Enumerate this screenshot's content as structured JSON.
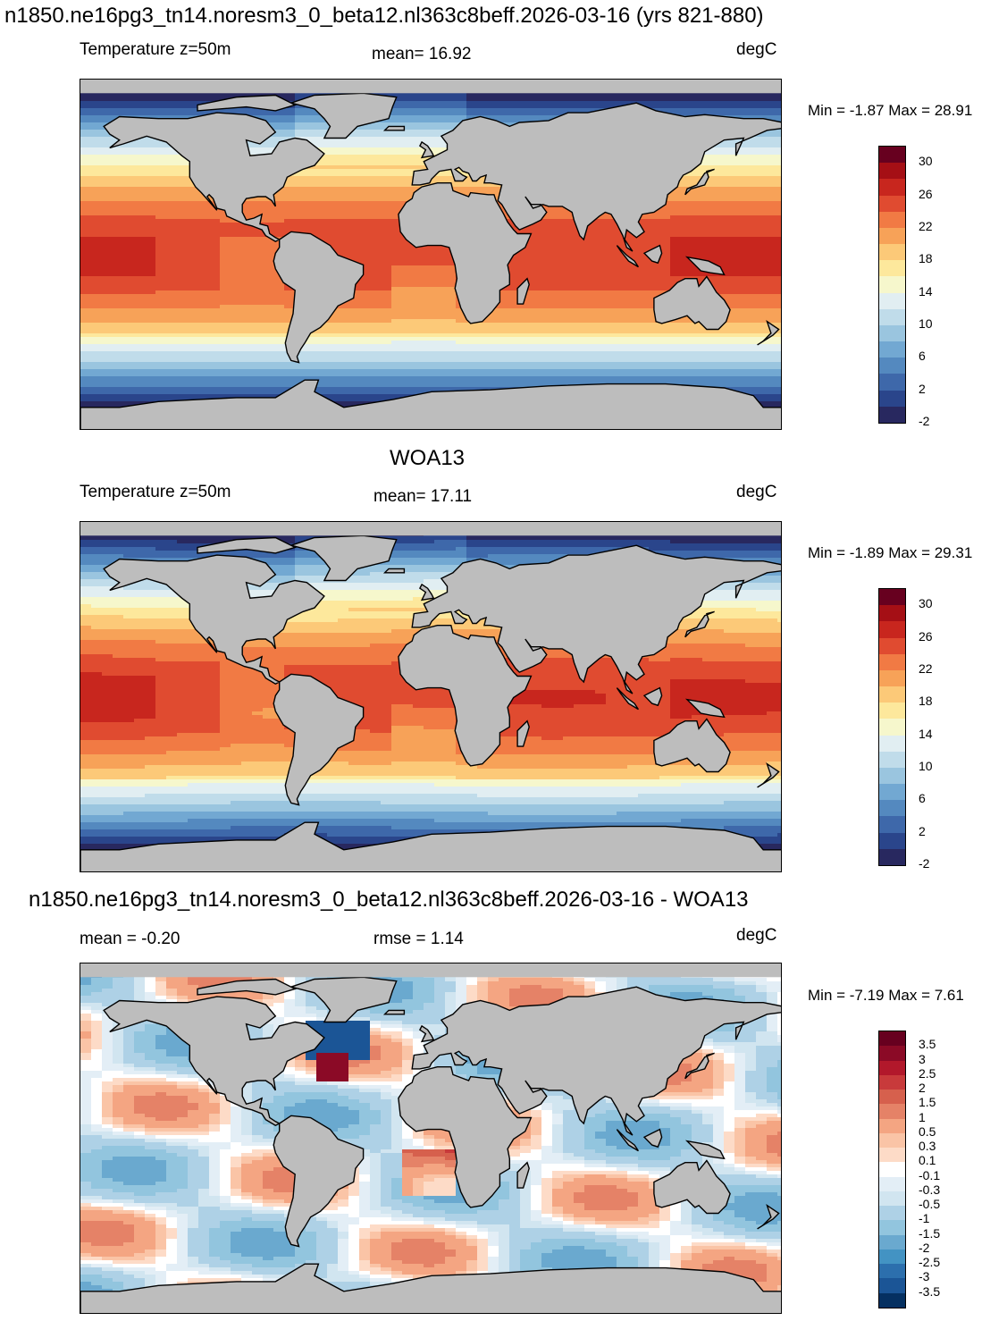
{
  "main_title": "n1850.ne16pg3_tn14.noresm3_0_beta12.nl363c8beff.2026-03-16 (yrs 821-880)",
  "panels": [
    {
      "id": "model",
      "heading": "",
      "left_label": "Temperature z=50m",
      "center_label": "mean=  16.92",
      "right_label": "degC",
      "minmax": "Min =  -1.87 Max =  28.91",
      "colorbar_labels": [
        "30",
        "26",
        "22",
        "18",
        "14",
        "10",
        "6",
        "2",
        "-2"
      ]
    },
    {
      "id": "obs",
      "heading": "WOA13",
      "left_label": "Temperature z=50m",
      "center_label": "mean=  17.11",
      "right_label": "degC",
      "minmax": "Min =  -1.89 Max =  29.31",
      "colorbar_labels": [
        "30",
        "26",
        "22",
        "18",
        "14",
        "10",
        "6",
        "2",
        "-2"
      ]
    },
    {
      "id": "diff",
      "heading": "n1850.ne16pg3_tn14.noresm3_0_beta12.nl363c8beff.2026-03-16 - WOA13",
      "left_label": "mean =  -0.20",
      "center_label": "rmse =   1.14",
      "right_label": "degC",
      "minmax": "Min =  -7.19 Max =   7.61",
      "colorbar_labels": [
        "3.5",
        "3",
        "2.5",
        "2",
        "1.5",
        "1",
        "0.5",
        "0.3",
        "0.1",
        "-0.1",
        "-0.3",
        "-0.5",
        "-1",
        "-1.5",
        "-2",
        "-2.5",
        "-3",
        "-3.5"
      ]
    }
  ],
  "colors": {
    "land": "#bdbdbd",
    "temp_scale": [
      "#67001f",
      "#a50f15",
      "#c8261e",
      "#e04b30",
      "#f17a44",
      "#f7a258",
      "#fcc978",
      "#fde89c",
      "#f6f7cc",
      "#e1eef2",
      "#c0dcea",
      "#9ac5df",
      "#72a8d2",
      "#5489bf",
      "#3e68aa",
      "#2a458b",
      "#28285f"
    ],
    "diff_scale": [
      "#67001f",
      "#8b0a26",
      "#b2182b",
      "#c83a3b",
      "#d6604d",
      "#e58267",
      "#f4a582",
      "#fac4a6",
      "#fddbc7",
      "#ffffff",
      "#e3eef6",
      "#d1e5f0",
      "#aed1e6",
      "#92c5de",
      "#6aa9cf",
      "#4393c3",
      "#2c6fad",
      "#1b5596",
      "#053061"
    ]
  }
}
